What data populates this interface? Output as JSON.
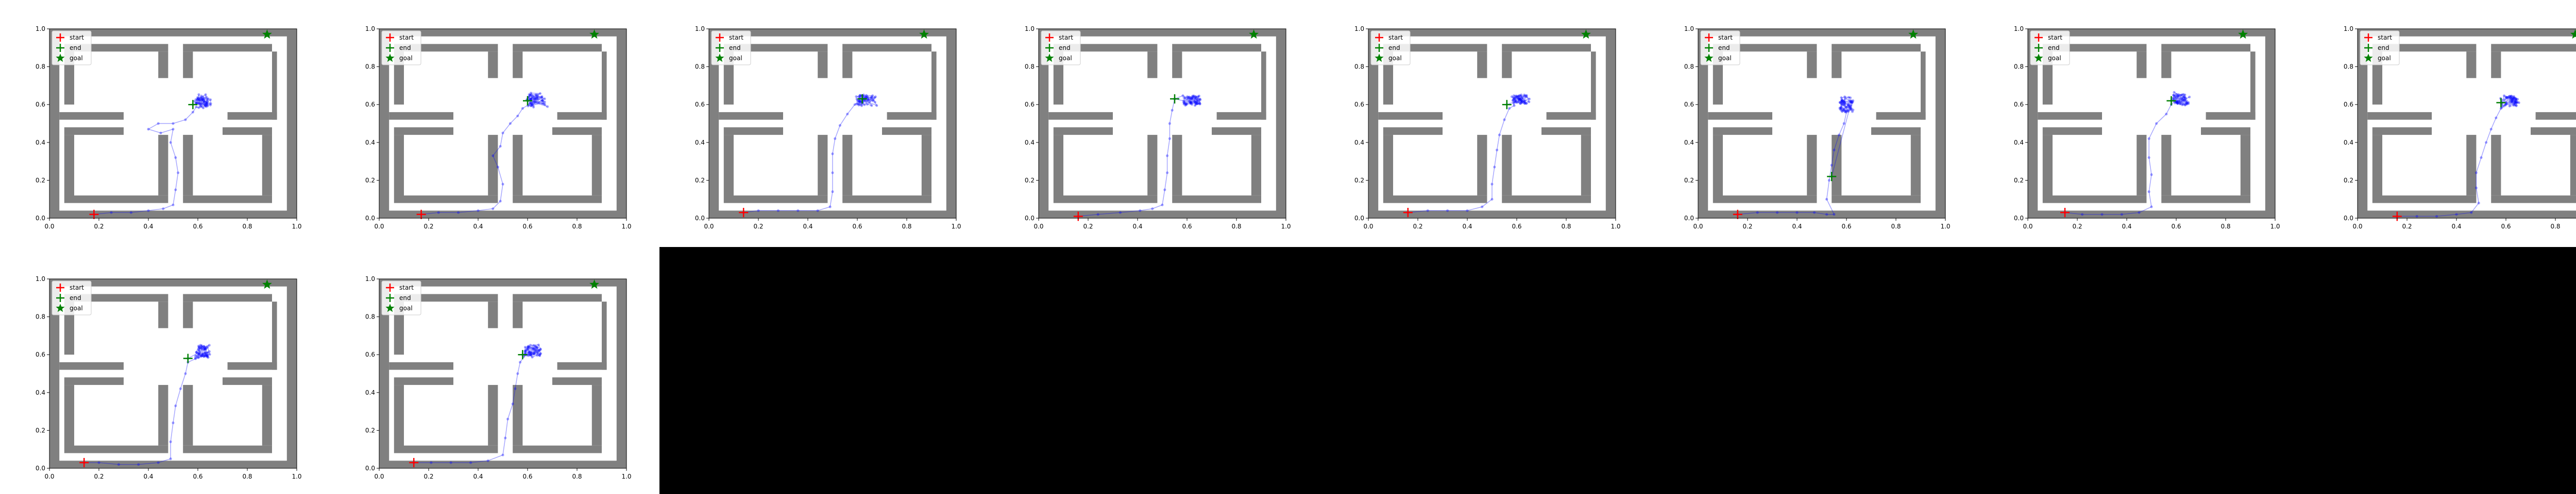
{
  "theme": {
    "wall_color": "#808080",
    "path_color": "#0000ff",
    "start_color": "#ff0000",
    "end_color": "#008000",
    "goal_color": "#008000",
    "background": "#ffffff",
    "empty_cell_color": "#000000"
  },
  "legend": {
    "start": "start",
    "end": "end",
    "goal": "goal",
    "placement": "upper-left"
  },
  "axis": {
    "xlim": [
      0,
      1
    ],
    "ylim": [
      0,
      1
    ],
    "xticks": [
      "0.0",
      "0.2",
      "0.4",
      "0.6",
      "0.8",
      "1.0"
    ],
    "yticks": [
      "0.0",
      "0.2",
      "0.4",
      "0.6",
      "0.8",
      "1.0"
    ],
    "grid": false
  },
  "walls": [
    [
      0.0,
      0.0,
      1.0,
      0.04
    ],
    [
      0.0,
      0.96,
      1.0,
      1.0
    ],
    [
      0.0,
      0.0,
      0.04,
      1.0
    ],
    [
      0.96,
      0.0,
      1.0,
      1.0
    ],
    [
      0.04,
      0.52,
      0.3,
      0.56
    ],
    [
      0.06,
      0.44,
      0.3,
      0.48
    ],
    [
      0.06,
      0.08,
      0.1,
      0.44
    ],
    [
      0.1,
      0.08,
      0.48,
      0.12
    ],
    [
      0.44,
      0.12,
      0.48,
      0.44
    ],
    [
      0.54,
      0.08,
      0.9,
      0.12
    ],
    [
      0.54,
      0.12,
      0.58,
      0.44
    ],
    [
      0.86,
      0.12,
      0.9,
      0.44
    ],
    [
      0.7,
      0.44,
      0.9,
      0.48
    ],
    [
      0.72,
      0.52,
      0.92,
      0.56
    ],
    [
      0.9,
      0.52,
      0.92,
      0.88
    ],
    [
      0.1,
      0.88,
      0.48,
      0.92
    ],
    [
      0.06,
      0.6,
      0.1,
      0.92
    ],
    [
      0.44,
      0.74,
      0.48,
      0.88
    ],
    [
      0.54,
      0.88,
      0.9,
      0.92
    ],
    [
      0.54,
      0.74,
      0.58,
      0.88
    ]
  ],
  "chart_data": [
    {
      "type": "scatter",
      "start": [
        0.18,
        0.02
      ],
      "end": [
        0.58,
        0.6
      ],
      "goal": [
        0.88,
        0.97
      ],
      "path": [
        [
          0.18,
          0.02
        ],
        [
          0.25,
          0.03
        ],
        [
          0.33,
          0.03
        ],
        [
          0.4,
          0.04
        ],
        [
          0.46,
          0.05
        ],
        [
          0.5,
          0.07
        ],
        [
          0.51,
          0.15
        ],
        [
          0.52,
          0.24
        ],
        [
          0.51,
          0.32
        ],
        [
          0.49,
          0.4
        ],
        [
          0.5,
          0.47
        ],
        [
          0.45,
          0.45
        ],
        [
          0.4,
          0.47
        ],
        [
          0.44,
          0.5
        ],
        [
          0.5,
          0.5
        ],
        [
          0.55,
          0.52
        ],
        [
          0.58,
          0.56
        ]
      ],
      "cluster": {
        "center": [
          0.62,
          0.62
        ],
        "spread": [
          0.04,
          0.045
        ],
        "n": 60,
        "seed": 11
      }
    },
    {
      "type": "scatter",
      "start": [
        0.17,
        0.02
      ],
      "end": [
        0.6,
        0.62
      ],
      "goal": [
        0.87,
        0.97
      ],
      "path": [
        [
          0.17,
          0.02
        ],
        [
          0.24,
          0.03
        ],
        [
          0.32,
          0.03
        ],
        [
          0.4,
          0.04
        ],
        [
          0.46,
          0.05
        ],
        [
          0.49,
          0.09
        ],
        [
          0.5,
          0.18
        ],
        [
          0.48,
          0.27
        ],
        [
          0.46,
          0.33
        ],
        [
          0.49,
          0.38
        ],
        [
          0.5,
          0.45
        ],
        [
          0.53,
          0.5
        ],
        [
          0.56,
          0.54
        ],
        [
          0.58,
          0.58
        ]
      ],
      "cluster": {
        "center": [
          0.64,
          0.62
        ],
        "spread": [
          0.05,
          0.045
        ],
        "n": 60,
        "seed": 23
      }
    },
    {
      "type": "scatter",
      "start": [
        0.14,
        0.03
      ],
      "end": [
        0.62,
        0.63
      ],
      "goal": [
        0.87,
        0.97
      ],
      "path": [
        [
          0.14,
          0.03
        ],
        [
          0.2,
          0.04
        ],
        [
          0.28,
          0.04
        ],
        [
          0.36,
          0.04
        ],
        [
          0.44,
          0.04
        ],
        [
          0.49,
          0.06
        ],
        [
          0.5,
          0.14
        ],
        [
          0.5,
          0.24
        ],
        [
          0.5,
          0.34
        ],
        [
          0.51,
          0.42
        ],
        [
          0.53,
          0.49
        ],
        [
          0.56,
          0.55
        ],
        [
          0.59,
          0.6
        ]
      ],
      "cluster": {
        "center": [
          0.64,
          0.62
        ],
        "spread": [
          0.05,
          0.035
        ],
        "n": 60,
        "seed": 37
      }
    },
    {
      "type": "scatter",
      "start": [
        0.16,
        0.01
      ],
      "end": [
        0.55,
        0.63
      ],
      "goal": [
        0.87,
        0.97
      ],
      "path": [
        [
          0.16,
          0.01
        ],
        [
          0.24,
          0.02
        ],
        [
          0.33,
          0.03
        ],
        [
          0.41,
          0.04
        ],
        [
          0.46,
          0.05
        ],
        [
          0.5,
          0.07
        ],
        [
          0.51,
          0.15
        ],
        [
          0.52,
          0.24
        ],
        [
          0.52,
          0.33
        ],
        [
          0.53,
          0.42
        ],
        [
          0.53,
          0.5
        ],
        [
          0.54,
          0.57
        ],
        [
          0.55,
          0.63
        ]
      ],
      "cluster": {
        "center": [
          0.62,
          0.62
        ],
        "spread": [
          0.045,
          0.035
        ],
        "n": 60,
        "seed": 41
      }
    },
    {
      "type": "scatter",
      "start": [
        0.16,
        0.03
      ],
      "end": [
        0.56,
        0.6
      ],
      "goal": [
        0.88,
        0.97
      ],
      "path": [
        [
          0.16,
          0.03
        ],
        [
          0.24,
          0.04
        ],
        [
          0.32,
          0.04
        ],
        [
          0.4,
          0.04
        ],
        [
          0.46,
          0.06
        ],
        [
          0.5,
          0.1
        ],
        [
          0.5,
          0.18
        ],
        [
          0.51,
          0.27
        ],
        [
          0.52,
          0.36
        ],
        [
          0.53,
          0.44
        ],
        [
          0.55,
          0.52
        ],
        [
          0.57,
          0.58
        ]
      ],
      "cluster": {
        "center": [
          0.62,
          0.63
        ],
        "spread": [
          0.045,
          0.035
        ],
        "n": 60,
        "seed": 53
      }
    },
    {
      "type": "scatter",
      "start": [
        0.16,
        0.02
      ],
      "end": [
        0.54,
        0.22
      ],
      "goal": [
        0.87,
        0.97
      ],
      "path": [
        [
          0.16,
          0.02
        ],
        [
          0.24,
          0.03
        ],
        [
          0.32,
          0.03
        ],
        [
          0.4,
          0.03
        ],
        [
          0.47,
          0.03
        ],
        [
          0.52,
          0.02
        ],
        [
          0.55,
          0.02
        ],
        [
          0.52,
          0.1
        ],
        [
          0.53,
          0.2
        ],
        [
          0.54,
          0.28
        ],
        [
          0.55,
          0.36
        ],
        [
          0.57,
          0.44
        ],
        [
          0.59,
          0.5
        ],
        [
          0.6,
          0.56
        ]
      ],
      "cluster": {
        "center": [
          0.6,
          0.6
        ],
        "spread": [
          0.035,
          0.05
        ],
        "n": 60,
        "seed": 67
      }
    },
    {
      "type": "scatter",
      "start": [
        0.15,
        0.03
      ],
      "end": [
        0.58,
        0.62
      ],
      "goal": [
        0.87,
        0.97
      ],
      "path": [
        [
          0.15,
          0.03
        ],
        [
          0.22,
          0.02
        ],
        [
          0.3,
          0.02
        ],
        [
          0.38,
          0.02
        ],
        [
          0.45,
          0.03
        ],
        [
          0.5,
          0.06
        ],
        [
          0.49,
          0.14
        ],
        [
          0.5,
          0.23
        ],
        [
          0.49,
          0.32
        ],
        [
          0.49,
          0.42
        ],
        [
          0.52,
          0.5
        ],
        [
          0.56,
          0.55
        ],
        [
          0.58,
          0.6
        ]
      ],
      "cluster": {
        "center": [
          0.62,
          0.63
        ],
        "spread": [
          0.045,
          0.04
        ],
        "n": 60,
        "seed": 79
      }
    },
    {
      "type": "scatter",
      "start": [
        0.16,
        0.01
      ],
      "end": [
        0.58,
        0.61
      ],
      "goal": [
        0.88,
        0.97
      ],
      "path": [
        [
          0.16,
          0.01
        ],
        [
          0.24,
          0.01
        ],
        [
          0.32,
          0.01
        ],
        [
          0.4,
          0.02
        ],
        [
          0.46,
          0.03
        ],
        [
          0.49,
          0.08
        ],
        [
          0.48,
          0.16
        ],
        [
          0.48,
          0.24
        ],
        [
          0.5,
          0.32
        ],
        [
          0.52,
          0.4
        ],
        [
          0.54,
          0.47
        ],
        [
          0.56,
          0.53
        ],
        [
          0.58,
          0.58
        ]
      ],
      "cluster": {
        "center": [
          0.62,
          0.62
        ],
        "spread": [
          0.045,
          0.04
        ],
        "n": 60,
        "seed": 83
      }
    },
    {
      "type": "scatter",
      "start": [
        0.14,
        0.03
      ],
      "end": [
        0.56,
        0.58
      ],
      "goal": [
        0.88,
        0.97
      ],
      "path": [
        [
          0.14,
          0.03
        ],
        [
          0.2,
          0.03
        ],
        [
          0.28,
          0.02
        ],
        [
          0.36,
          0.02
        ],
        [
          0.44,
          0.03
        ],
        [
          0.49,
          0.05
        ],
        [
          0.49,
          0.14
        ],
        [
          0.5,
          0.24
        ],
        [
          0.51,
          0.33
        ],
        [
          0.53,
          0.42
        ],
        [
          0.55,
          0.5
        ],
        [
          0.56,
          0.56
        ]
      ],
      "cluster": {
        "center": [
          0.62,
          0.62
        ],
        "spread": [
          0.035,
          0.04
        ],
        "n": 60,
        "seed": 97
      }
    },
    {
      "type": "scatter",
      "start": [
        0.14,
        0.03
      ],
      "end": [
        0.58,
        0.6
      ],
      "goal": [
        0.87,
        0.97
      ],
      "path": [
        [
          0.14,
          0.03
        ],
        [
          0.21,
          0.03
        ],
        [
          0.29,
          0.03
        ],
        [
          0.37,
          0.03
        ],
        [
          0.44,
          0.04
        ],
        [
          0.5,
          0.07
        ],
        [
          0.51,
          0.16
        ],
        [
          0.52,
          0.26
        ],
        [
          0.54,
          0.34
        ],
        [
          0.55,
          0.42
        ],
        [
          0.56,
          0.5
        ],
        [
          0.57,
          0.56
        ]
      ],
      "cluster": {
        "center": [
          0.62,
          0.62
        ],
        "spread": [
          0.045,
          0.04
        ],
        "n": 60,
        "seed": 101
      }
    }
  ]
}
